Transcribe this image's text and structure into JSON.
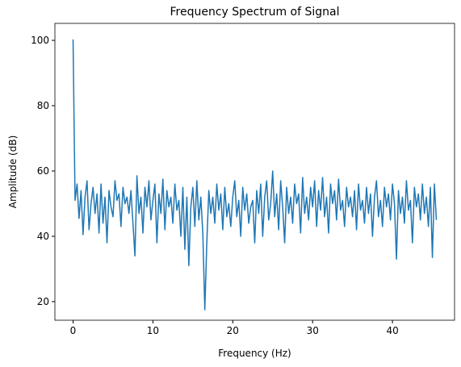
{
  "chart_data": {
    "type": "line",
    "title": "Frequency Spectrum of Signal",
    "x_label": "Frequency (Hz)",
    "y_label": "Amplitude (dB)",
    "x": [
      0,
      0.25,
      0.5,
      0.75,
      1,
      1.25,
      1.5,
      1.75,
      2,
      2.25,
      2.5,
      2.75,
      3,
      3.25,
      3.5,
      3.75,
      4,
      4.25,
      4.5,
      4.75,
      5,
      5.25,
      5.5,
      5.75,
      6,
      6.25,
      6.5,
      6.75,
      7,
      7.25,
      7.5,
      7.75,
      8,
      8.25,
      8.5,
      8.75,
      9,
      9.25,
      9.5,
      9.75,
      10,
      10.25,
      10.5,
      10.75,
      11,
      11.25,
      11.5,
      11.75,
      12,
      12.25,
      12.5,
      12.75,
      13,
      13.25,
      13.5,
      13.75,
      14,
      14.25,
      14.5,
      14.75,
      15,
      15.25,
      15.5,
      15.75,
      16,
      16.25,
      16.5,
      16.75,
      17,
      17.25,
      17.5,
      17.75,
      18,
      18.25,
      18.5,
      18.75,
      19,
      19.25,
      19.5,
      19.75,
      20,
      20.25,
      20.5,
      20.75,
      21,
      21.25,
      21.5,
      21.75,
      22,
      22.25,
      22.5,
      22.75,
      23,
      23.25,
      23.5,
      23.75,
      24,
      24.25,
      24.5,
      24.75,
      25,
      25.25,
      25.5,
      25.75,
      26,
      26.25,
      26.5,
      26.75,
      27,
      27.25,
      27.5,
      27.75,
      28,
      28.25,
      28.5,
      28.75,
      29,
      29.25,
      29.5,
      29.75,
      30,
      30.25,
      30.5,
      30.75,
      31,
      31.25,
      31.5,
      31.75,
      32,
      32.25,
      32.5,
      32.75,
      33,
      33.25,
      33.5,
      33.75,
      34,
      34.25,
      34.5,
      34.75,
      35,
      35.25,
      35.5,
      35.75,
      36,
      36.25,
      36.5,
      36.75,
      37,
      37.25,
      37.5,
      37.75,
      38,
      38.25,
      38.5,
      38.75,
      39,
      39.25,
      39.5,
      39.75,
      40,
      40.25,
      40.5,
      40.75,
      41,
      41.25,
      41.5,
      41.75,
      42,
      42.25,
      42.5,
      42.75,
      43,
      43.25,
      43.5,
      43.75,
      44,
      44.25,
      44.5,
      44.75,
      45,
      45.25,
      45.5
    ],
    "series": [
      {
        "color": "#1f77b4",
        "values": [
          100.3,
          51,
          56,
          45.5,
          54,
          40.5,
          52,
          57,
          42,
          50,
          55,
          47,
          53,
          41,
          56,
          44,
          52,
          38,
          54,
          49,
          46,
          57,
          51,
          53,
          43,
          55,
          50,
          52,
          47,
          54,
          44,
          34,
          58.5,
          47,
          52,
          41,
          55,
          49,
          57,
          45,
          51,
          56,
          38,
          53,
          47,
          57.5,
          42,
          54,
          49,
          52,
          44,
          56,
          48,
          51,
          40,
          55,
          36,
          52,
          31,
          49,
          55,
          43,
          57,
          45,
          52,
          41,
          17.5,
          38,
          54,
          47,
          52,
          44,
          56,
          48,
          53,
          42,
          55,
          46,
          50,
          43,
          52,
          57,
          46,
          51,
          40,
          55,
          48,
          53,
          44,
          49,
          51,
          38,
          54,
          47,
          56,
          40,
          52,
          57,
          45,
          50,
          60,
          46,
          53,
          42,
          57,
          49,
          38,
          55,
          47,
          52,
          44,
          56,
          50,
          53,
          41,
          58,
          47,
          52,
          45,
          55,
          49,
          57,
          43,
          54,
          48,
          58,
          46,
          52,
          41,
          56,
          50,
          54,
          45,
          57.5,
          48,
          51,
          43,
          55,
          49,
          52,
          46,
          54,
          42,
          56,
          48,
          51,
          44,
          55,
          47,
          53,
          40,
          52,
          57,
          46,
          51,
          43,
          55,
          49,
          53,
          45,
          56,
          50,
          33,
          54,
          47,
          52,
          44,
          57,
          48,
          51,
          38,
          55,
          49,
          53,
          45,
          56,
          47,
          52,
          43,
          55,
          33.5,
          56,
          45
        ]
      }
    ],
    "xlim": [
      -2.275,
      47.775
    ],
    "ylim": [
      14.3,
      105.2
    ],
    "xticks": [
      0,
      10,
      20,
      30,
      40
    ],
    "yticks": [
      20,
      40,
      60,
      80,
      100
    ]
  }
}
